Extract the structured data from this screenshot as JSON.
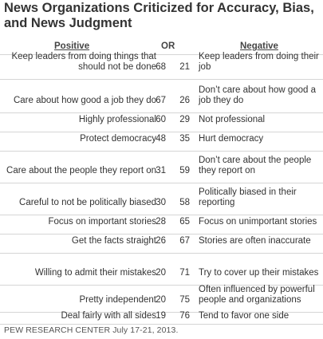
{
  "title": "News Organizations Criticized for Accuracy, Bias, and News Judgment",
  "chart_data": {
    "type": "table",
    "columns": {
      "positive": "Positive",
      "or": "OR",
      "negative": "Negative"
    },
    "rows": [
      {
        "positive": "Keep leaders from doing things that should not be done",
        "positive_value": 68,
        "negative_value": 21,
        "negative": "Keep leaders from doing their job"
      },
      {
        "positive": "Care about how good a job they do",
        "positive_value": 67,
        "negative_value": 26,
        "negative": "Don’t care about how good a job they do"
      },
      {
        "positive": "Highly professional",
        "positive_value": 60,
        "negative_value": 29,
        "negative": "Not professional"
      },
      {
        "positive": "Protect democracy",
        "positive_value": 48,
        "negative_value": 35,
        "negative": "Hurt democracy"
      },
      {
        "positive": "Care about the people they report on",
        "positive_value": 31,
        "negative_value": 59,
        "negative": "Don’t care about the people they report on"
      },
      {
        "positive": "Careful to not be politically biased",
        "positive_value": 30,
        "negative_value": 58,
        "negative": "Politically biased in their reporting"
      },
      {
        "positive": "Focus on important stories",
        "positive_value": 28,
        "negative_value": 65,
        "negative": "Focus on unimportant stories"
      },
      {
        "positive": "Get the facts straight",
        "positive_value": 26,
        "negative_value": 67,
        "negative": "Stories are often inaccurate"
      },
      {
        "positive": "Willing to admit their mistakes",
        "positive_value": 20,
        "negative_value": 71,
        "negative": "Try to cover up their mistakes"
      },
      {
        "positive": "Pretty independent",
        "positive_value": 20,
        "negative_value": 75,
        "negative": "Often influenced by powerful people and organizations"
      },
      {
        "positive": "Deal fairly with all sides",
        "positive_value": 19,
        "negative_value": 76,
        "negative": "Tend to favor one side"
      }
    ]
  },
  "source": {
    "org": "PEW RESEARCH CENTER",
    "date": "July 17-21, 2013."
  }
}
